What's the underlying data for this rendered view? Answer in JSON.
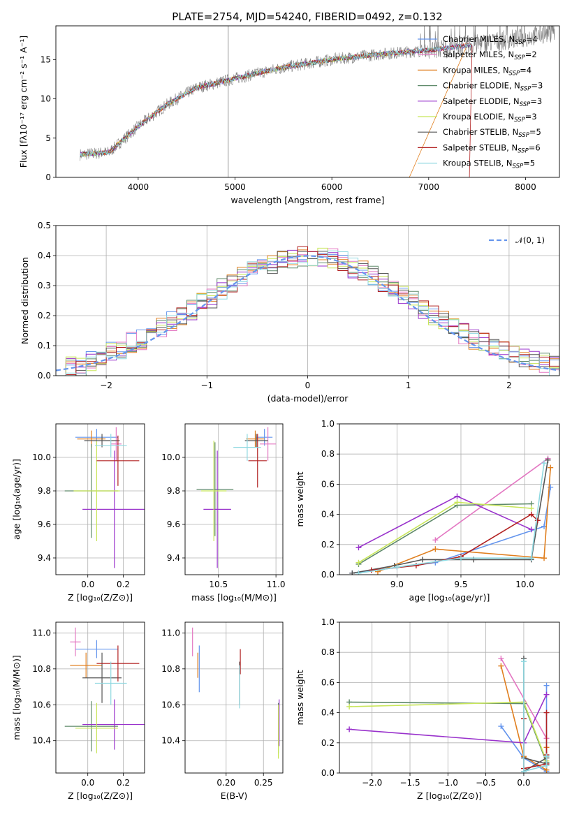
{
  "chart_data": [
    {
      "type": "line",
      "title": "PLATE=2754, MJD=54240, FIBERID=0492, z=0.132",
      "xlabel": "wavelength [Angstrom, rest frame]",
      "ylabel": "Flux [fλ10⁻¹⁷ erg cm⁻² s⁻¹ A⁻¹]",
      "xlim": [
        3150,
        8350
      ],
      "ylim": [
        0,
        19.3
      ],
      "xticks": [
        "4000",
        "5000",
        "6000",
        "7000",
        "8000"
      ],
      "yticks": [
        "0",
        "5",
        "10",
        "15"
      ],
      "legend_position": "upper-right",
      "series": [
        {
          "name": "Chabrier MILES, N_SSP=4",
          "label_main": "Chabrier MILES, N",
          "label_sub": "SSP",
          "label_tail": "=4",
          "color": "#6495ed"
        },
        {
          "name": "Salpeter MILES, N_SSP=2",
          "label_main": "Salpeter MILES, N",
          "label_sub": "SSP",
          "label_tail": "=2",
          "color": "#e377c2"
        },
        {
          "name": "Kroupa MILES, N_SSP=4",
          "label_main": "Kroupa MILES, N",
          "label_sub": "SSP",
          "label_tail": "=4",
          "color": "#e07f1f"
        },
        {
          "name": "Chabrier ELODIE, N_SSP=3",
          "label_main": "Chabrier ELODIE, N",
          "label_sub": "SSP",
          "label_tail": "=3",
          "color": "#5f8a6a"
        },
        {
          "name": "Salpeter ELODIE, N_SSP=3",
          "label_main": "Salpeter ELODIE, N",
          "label_sub": "SSP",
          "label_tail": "=3",
          "color": "#9932cc"
        },
        {
          "name": "Kroupa ELODIE, N_SSP=3",
          "label_main": "Kroupa ELODIE, N",
          "label_sub": "SSP",
          "label_tail": "=3",
          "color": "#c8e65a"
        },
        {
          "name": "Chabrier STELIB, N_SSP=5",
          "label_main": "Chabrier STELIB, N",
          "label_sub": "SSP",
          "label_tail": "=5",
          "color": "#555555"
        },
        {
          "name": "Salpeter STELIB, N_SSP=6",
          "label_main": "Salpeter STELIB, N",
          "label_sub": "SSP",
          "label_tail": "=6",
          "color": "#b22222"
        },
        {
          "name": "Kroupa STELIB, N_SSP=5",
          "label_main": "Kroupa STELIB, N",
          "label_sub": "SSP",
          "label_tail": "=5",
          "color": "#8fd8e0"
        }
      ],
      "continuum": {
        "x": [
          3400,
          3700,
          4000,
          4300,
          4600,
          5000,
          5500,
          6000,
          6500,
          7000,
          7400,
          8000,
          8300
        ],
        "y": [
          2.9,
          3.2,
          6.5,
          9.3,
          11.4,
          12.6,
          14.0,
          15.0,
          15.7,
          16.2,
          16.8,
          17.8,
          18.6
        ]
      }
    },
    {
      "type": "line",
      "xlabel": "(data-model)/error",
      "ylabel": "Normed distribution",
      "xlim": [
        -2.5,
        2.5
      ],
      "ylim": [
        0,
        0.5
      ],
      "xticks": [
        "−2",
        "−1",
        "0",
        "1",
        "2"
      ],
      "yticks": [
        "0.0",
        "0.1",
        "0.2",
        "0.3",
        "0.4",
        "0.5"
      ],
      "legend": "𝒩(0, 1)",
      "legend_position": "upper-right",
      "curve": {
        "name": "N(0,1)",
        "mean": 0,
        "sigma": 1,
        "color": "#6495ed"
      },
      "bin_width": 0.1,
      "base_histogram": [
        0.02,
        0.03,
        0.03,
        0.05,
        0.06,
        0.08,
        0.09,
        0.11,
        0.12,
        0.14,
        0.16,
        0.18,
        0.2,
        0.22,
        0.24,
        0.26,
        0.29,
        0.31,
        0.33,
        0.35,
        0.36,
        0.37,
        0.38,
        0.39,
        0.4,
        0.4,
        0.4,
        0.39,
        0.38,
        0.36,
        0.35,
        0.33,
        0.31,
        0.29,
        0.27,
        0.25,
        0.22,
        0.2,
        0.18,
        0.16,
        0.14,
        0.12,
        0.11,
        0.1,
        0.08,
        0.07,
        0.06,
        0.05,
        0.04,
        0.03
      ]
    },
    {
      "type": "scatter",
      "xlabel": "Z [log₁₀(Z/Z⊙)]",
      "ylabel": "age  [log₁₀(age/yr)]",
      "xlim": [
        -0.18,
        0.32
      ],
      "ylim": [
        9.3,
        10.2
      ],
      "xticks": [
        "0.0",
        "0.2"
      ],
      "yticks": [
        "9.4",
        "9.6",
        "9.8",
        "10.0"
      ],
      "points": [
        {
          "x": 0.05,
          "y": 10.12,
          "xerr": 0.12,
          "yerr": 0.05,
          "color": "#6495ed"
        },
        {
          "x": 0.16,
          "y": 10.08,
          "xerr": 0.03,
          "yerr": 0.1,
          "color": "#e377c2"
        },
        {
          "x": 0.02,
          "y": 10.11,
          "xerr": 0.08,
          "yerr": 0.05,
          "color": "#e07f1f"
        },
        {
          "x": 0.02,
          "y": 9.8,
          "xerr": 0.15,
          "yerr": 0.28,
          "color": "#5f8a6a"
        },
        {
          "x": 0.15,
          "y": 9.69,
          "xerr": 0.18,
          "yerr": 0.35,
          "color": "#9932cc"
        },
        {
          "x": 0.05,
          "y": 9.8,
          "xerr": 0.13,
          "yerr": 0.3,
          "color": "#c8e65a"
        },
        {
          "x": 0.08,
          "y": 10.1,
          "xerr": 0.1,
          "yerr": 0.04,
          "color": "#555555"
        },
        {
          "x": 0.17,
          "y": 9.98,
          "xerr": 0.12,
          "yerr": 0.15,
          "color": "#b22222"
        },
        {
          "x": 0.13,
          "y": 10.07,
          "xerr": 0.09,
          "yerr": 0.07,
          "color": "#8fd8e0"
        }
      ]
    },
    {
      "type": "scatter",
      "xlabel": "mass [log₁₀(M/M⊙)]",
      "ylabel": "",
      "xlim": [
        10.21,
        11.06
      ],
      "ylim": [
        9.3,
        10.2
      ],
      "xticks": [
        "10.5",
        "11.0"
      ],
      "yticks": [
        "9.4",
        "9.6",
        "9.8",
        "10.0"
      ],
      "points": [
        {
          "x": 10.9,
          "y": 10.12,
          "xerr": 0.07,
          "yerr": 0.05,
          "color": "#6495ed"
        },
        {
          "x": 10.93,
          "y": 10.08,
          "xerr": 0.07,
          "yerr": 0.1,
          "color": "#e377c2"
        },
        {
          "x": 10.82,
          "y": 10.11,
          "xerr": 0.08,
          "yerr": 0.05,
          "color": "#e07f1f"
        },
        {
          "x": 10.47,
          "y": 9.81,
          "xerr": 0.16,
          "yerr": 0.28,
          "color": "#5f8a6a"
        },
        {
          "x": 10.49,
          "y": 9.69,
          "xerr": 0.12,
          "yerr": 0.35,
          "color": "#9932cc"
        },
        {
          "x": 10.46,
          "y": 9.8,
          "xerr": 0.11,
          "yerr": 0.3,
          "color": "#c8e65a"
        },
        {
          "x": 10.83,
          "y": 10.1,
          "xerr": 0.1,
          "yerr": 0.04,
          "color": "#555555"
        },
        {
          "x": 10.84,
          "y": 9.98,
          "xerr": 0.08,
          "yerr": 0.16,
          "color": "#b22222"
        },
        {
          "x": 10.75,
          "y": 10.06,
          "xerr": 0.12,
          "yerr": 0.08,
          "color": "#8fd8e0"
        }
      ]
    },
    {
      "type": "line",
      "xlabel": "age  [log₁₀(age/yr)]",
      "ylabel": "mass weight",
      "xlim": [
        8.55,
        10.27
      ],
      "ylim": [
        0,
        1
      ],
      "xticks": [
        "9.0",
        "9.5",
        "10.0"
      ],
      "yticks": [
        "0.0",
        "0.2",
        "0.4",
        "0.6",
        "0.8",
        "1.0"
      ],
      "series": [
        {
          "color": "#6495ed",
          "x": [
            8.65,
            9.3,
            10.15,
            10.2
          ],
          "y": [
            0.01,
            0.08,
            0.32,
            0.58
          ]
        },
        {
          "color": "#e377c2",
          "x": [
            9.3,
            10.18
          ],
          "y": [
            0.23,
            0.77
          ]
        },
        {
          "color": "#e07f1f",
          "x": [
            8.85,
            9.3,
            10.15,
            10.2
          ],
          "y": [
            0.02,
            0.17,
            0.11,
            0.71
          ]
        },
        {
          "color": "#5f8a6a",
          "x": [
            8.7,
            9.47,
            10.05
          ],
          "y": [
            0.07,
            0.46,
            0.47
          ]
        },
        {
          "color": "#9932cc",
          "x": [
            8.7,
            9.47,
            10.05
          ],
          "y": [
            0.18,
            0.52,
            0.3
          ]
        },
        {
          "color": "#c8e65a",
          "x": [
            8.7,
            9.47,
            10.05
          ],
          "y": [
            0.08,
            0.48,
            0.44
          ]
        },
        {
          "color": "#555555",
          "x": [
            8.65,
            8.98,
            9.2,
            9.6,
            10.05,
            10.18
          ],
          "y": [
            0.01,
            0.06,
            0.1,
            0.1,
            0.1,
            0.76
          ]
        },
        {
          "color": "#b22222",
          "x": [
            8.8,
            9.15,
            9.5,
            10.05,
            10.1
          ],
          "y": [
            0.03,
            0.06,
            0.12,
            0.4,
            0.36
          ]
        },
        {
          "color": "#8fd8e0",
          "x": [
            8.7,
            9.0,
            9.5,
            10.05,
            10.15
          ],
          "y": [
            0.01,
            0.05,
            0.11,
            0.11,
            0.74
          ]
        }
      ]
    },
    {
      "type": "scatter",
      "xlabel": "Z [log₁₀(Z/Z⊙)]",
      "ylabel": "mass [log₁₀(M/M⊙)]",
      "xlim": [
        -0.18,
        0.32
      ],
      "ylim": [
        10.22,
        11.06
      ],
      "xticks": [
        "0.0",
        "0.2"
      ],
      "yticks": [
        "10.4",
        "10.6",
        "10.8",
        "11.0"
      ],
      "points": [
        {
          "x": 0.05,
          "y": 10.91,
          "xerr": 0.12,
          "yerr": 0.05,
          "color": "#6495ed"
        },
        {
          "x": -0.07,
          "y": 10.95,
          "xerr": 0.03,
          "yerr": 0.08,
          "color": "#e377c2"
        },
        {
          "x": -0.01,
          "y": 10.82,
          "xerr": 0.09,
          "yerr": 0.07,
          "color": "#e07f1f"
        },
        {
          "x": 0.02,
          "y": 10.48,
          "xerr": 0.15,
          "yerr": 0.14,
          "color": "#5f8a6a"
        },
        {
          "x": 0.15,
          "y": 10.49,
          "xerr": 0.18,
          "yerr": 0.14,
          "color": "#9932cc"
        },
        {
          "x": 0.05,
          "y": 10.47,
          "xerr": 0.12,
          "yerr": 0.14,
          "color": "#c8e65a"
        },
        {
          "x": 0.08,
          "y": 10.75,
          "xerr": 0.11,
          "yerr": 0.14,
          "color": "#555555"
        },
        {
          "x": 0.17,
          "y": 10.83,
          "xerr": 0.12,
          "yerr": 0.1,
          "color": "#b22222"
        },
        {
          "x": 0.13,
          "y": 10.72,
          "xerr": 0.09,
          "yerr": 0.12,
          "color": "#8fd8e0"
        }
      ]
    },
    {
      "type": "scatter",
      "xlabel": "E(B-V)",
      "ylabel": "",
      "xlim": [
        0.145,
        0.276
      ],
      "ylim": [
        10.22,
        11.06
      ],
      "xticks": [
        "0.20",
        "0.25"
      ],
      "yticks": [
        "10.4",
        "10.6",
        "10.8",
        "11.0"
      ],
      "points": [
        {
          "x": 0.164,
          "y": 10.8,
          "xerr": 0.0,
          "yerr": 0.13,
          "color": "#6495ed"
        },
        {
          "x": 0.155,
          "y": 10.95,
          "xerr": 0.0,
          "yerr": 0.08,
          "color": "#e377c2"
        },
        {
          "x": 0.162,
          "y": 10.82,
          "xerr": 0.0,
          "yerr": 0.07,
          "color": "#e07f1f"
        },
        {
          "x": 0.27,
          "y": 10.47,
          "xerr": 0.0,
          "yerr": 0.14,
          "color": "#5f8a6a"
        },
        {
          "x": 0.271,
          "y": 10.5,
          "xerr": 0.0,
          "yerr": 0.13,
          "color": "#9932cc"
        },
        {
          "x": 0.27,
          "y": 10.45,
          "xerr": 0.0,
          "yerr": 0.15,
          "color": "#c8e65a"
        },
        {
          "x": 0.218,
          "y": 10.72,
          "xerr": 0.0,
          "yerr": 0.12,
          "color": "#555555"
        },
        {
          "x": 0.219,
          "y": 10.84,
          "xerr": 0.0,
          "yerr": 0.07,
          "color": "#b22222"
        },
        {
          "x": 0.218,
          "y": 10.7,
          "xerr": 0.0,
          "yerr": 0.12,
          "color": "#8fd8e0"
        }
      ]
    },
    {
      "type": "line",
      "xlabel": "Z [log₁₀(Z/Z⊙)]",
      "ylabel": "mass weight",
      "xlim": [
        -2.43,
        0.47
      ],
      "ylim": [
        0,
        1
      ],
      "xticks": [
        "−2.0",
        "−1.5",
        "−1.0",
        "−0.5",
        "0.0"
      ],
      "yticks": [
        "0.0",
        "0.2",
        "0.4",
        "0.6",
        "0.8",
        "1.0"
      ],
      "series": [
        {
          "color": "#6495ed",
          "x": [
            -0.3,
            0.0,
            0.3,
            0.3
          ],
          "y": [
            0.31,
            0.1,
            0.01,
            0.58
          ]
        },
        {
          "color": "#e377c2",
          "x": [
            -0.3,
            0.3
          ],
          "y": [
            0.76,
            0.23
          ]
        },
        {
          "color": "#e07f1f",
          "x": [
            -0.3,
            0.0,
            0.3,
            0.3
          ],
          "y": [
            0.71,
            0.11,
            0.02,
            0.17
          ]
        },
        {
          "color": "#5f8a6a",
          "x": [
            -2.3,
            0.0,
            0.3
          ],
          "y": [
            0.47,
            0.46,
            0.07
          ]
        },
        {
          "color": "#9932cc",
          "x": [
            -2.3,
            0.0,
            0.3
          ],
          "y": [
            0.29,
            0.2,
            0.52
          ]
        },
        {
          "color": "#c8e65a",
          "x": [
            -2.3,
            0.0,
            0.3
          ],
          "y": [
            0.44,
            0.47,
            0.08
          ]
        },
        {
          "color": "#555555",
          "x": [
            0.0,
            0.0,
            0.3,
            0.3,
            0.0
          ],
          "y": [
            0.76,
            0.1,
            0.06,
            0.1,
            0.01
          ]
        },
        {
          "color": "#b22222",
          "x": [
            0.0,
            0.0,
            0.3,
            0.3,
            0.3
          ],
          "y": [
            0.36,
            0.03,
            0.06,
            0.4,
            0.12
          ]
        },
        {
          "color": "#8fd8e0",
          "x": [
            0.0,
            0.0,
            0.3,
            0.3,
            0.3
          ],
          "y": [
            0.74,
            0.01,
            0.05,
            0.11,
            0.11
          ]
        }
      ]
    }
  ]
}
